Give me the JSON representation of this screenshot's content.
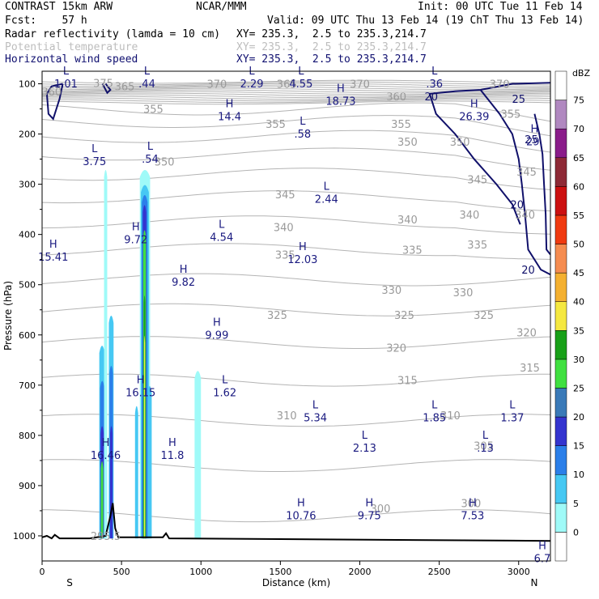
{
  "header": {
    "line1_left": "CONTRAST 15km ARW",
    "line1_mid": "NCAR/MMM",
    "line1_right": "Init: 00 UTC Tue 11 Feb 14",
    "line2_left": "Fcst:    57 h",
    "line2_right": "Valid: 09 UTC Thu 13 Feb 14 (19 ChT Thu 13 Feb 14)",
    "field1_name": "Radar reflectivity (lamda = 10 cm)",
    "field1_xy": "XY= 235.3,  2.5 to 235.3,214.7",
    "field2_name": "Potential temperature",
    "field2_xy": "XY= 235.3,  2.5 to 235.3,214.7",
    "field3_name": "Horizontal wind speed",
    "field3_xy": "XY= 235.3,  2.5 to 235.3,214.7"
  },
  "chart_data": {
    "type": "contour_cross_section",
    "xlabel": "Distance (km)",
    "ylabel": "Pressure (hPa)",
    "xlim": [
      0,
      3200
    ],
    "ylim": [
      1050,
      75
    ],
    "x_ticks": [
      0,
      500,
      1000,
      1500,
      2000,
      2500,
      3000
    ],
    "y_ticks": [
      100,
      200,
      300,
      400,
      500,
      600,
      700,
      800,
      900,
      1000
    ],
    "x_end_labels": {
      "left": "S",
      "right": "N"
    },
    "colorbar": {
      "unit": "dBZ",
      "levels": [
        0,
        5,
        10,
        15,
        20,
        25,
        30,
        35,
        40,
        45,
        50,
        55,
        60,
        65,
        70,
        75
      ],
      "colors": [
        "#ffffff",
        "#9ffaf8",
        "#46c8f3",
        "#2b7fe9",
        "#3434cf",
        "#3a7ab8",
        "#40e040",
        "#18a018",
        "#f5e840",
        "#f4b030",
        "#f58c50",
        "#f03a10",
        "#cc1010",
        "#8e2a36",
        "#8a1c8a",
        "#b088c0"
      ]
    },
    "reflectivity_cells": [
      {
        "x0": 360,
        "x1": 395,
        "top": 620,
        "color": "#46c8f3"
      },
      {
        "x0": 365,
        "x1": 392,
        "top": 690,
        "color": "#2b7fe9"
      },
      {
        "x0": 368,
        "x1": 388,
        "top": 780,
        "color": "#3434cf"
      },
      {
        "x0": 370,
        "x1": 385,
        "top": 850,
        "color": "#40e040"
      },
      {
        "x0": 420,
        "x1": 450,
        "top": 560,
        "color": "#46c8f3"
      },
      {
        "x0": 424,
        "x1": 446,
        "top": 660,
        "color": "#2b7fe9"
      },
      {
        "x0": 428,
        "x1": 444,
        "top": 780,
        "color": "#3434cf"
      },
      {
        "x0": 585,
        "x1": 605,
        "top": 740,
        "color": "#46c8f3"
      },
      {
        "x0": 615,
        "x1": 680,
        "top": 270,
        "color": "#9ffaf8"
      },
      {
        "x0": 622,
        "x1": 672,
        "top": 300,
        "color": "#46c8f3"
      },
      {
        "x0": 628,
        "x1": 664,
        "top": 320,
        "color": "#2b7fe9"
      },
      {
        "x0": 634,
        "x1": 656,
        "top": 340,
        "color": "#3434cf"
      },
      {
        "x0": 636,
        "x1": 654,
        "top": 390,
        "color": "#40e040"
      },
      {
        "x0": 640,
        "x1": 650,
        "top": 520,
        "color": "#18a018"
      },
      {
        "x0": 642,
        "x1": 648,
        "top": 600,
        "color": "#f5e840"
      },
      {
        "x0": 390,
        "x1": 410,
        "top": 270,
        "color": "#9ffaf8"
      },
      {
        "x0": 960,
        "x1": 1000,
        "top": 670,
        "color": "#9ffaf8"
      },
      {
        "x0": 665,
        "x1": 690,
        "top": 700,
        "color": "#46c8f3"
      }
    ],
    "terrain_label": "295.5",
    "theta_labels": [
      {
        "x": 520,
        "p": 105,
        "t": "365"
      },
      {
        "x": 1100,
        "p": 100,
        "t": "370"
      },
      {
        "x": 1540,
        "p": 100,
        "t": "365"
      },
      {
        "x": 2000,
        "p": 100,
        "t": "370"
      },
      {
        "x": 2880,
        "p": 100,
        "t": "370"
      },
      {
        "x": 385,
        "p": 98,
        "t": "375"
      },
      {
        "x": 60,
        "p": 115,
        "t": "360"
      },
      {
        "x": 2230,
        "p": 125,
        "t": "360"
      },
      {
        "x": 700,
        "p": 150,
        "t": "355"
      },
      {
        "x": 1470,
        "p": 180,
        "t": "355"
      },
      {
        "x": 2260,
        "p": 180,
        "t": "355"
      },
      {
        "x": 2950,
        "p": 160,
        "t": "355"
      },
      {
        "x": 2300,
        "p": 215,
        "t": "350"
      },
      {
        "x": 2630,
        "p": 215,
        "t": "350"
      },
      {
        "x": 770,
        "p": 255,
        "t": "350"
      },
      {
        "x": 1530,
        "p": 320,
        "t": "345"
      },
      {
        "x": 2740,
        "p": 290,
        "t": "345"
      },
      {
        "x": 3050,
        "p": 275,
        "t": "345"
      },
      {
        "x": 1520,
        "p": 385,
        "t": "340"
      },
      {
        "x": 2300,
        "p": 370,
        "t": "340"
      },
      {
        "x": 2690,
        "p": 360,
        "t": "340"
      },
      {
        "x": 3040,
        "p": 360,
        "t": "340"
      },
      {
        "x": 1530,
        "p": 440,
        "t": "335"
      },
      {
        "x": 2330,
        "p": 430,
        "t": "335"
      },
      {
        "x": 2740,
        "p": 420,
        "t": "335"
      },
      {
        "x": 2200,
        "p": 510,
        "t": "330"
      },
      {
        "x": 2650,
        "p": 515,
        "t": "330"
      },
      {
        "x": 1480,
        "p": 560,
        "t": "325"
      },
      {
        "x": 2280,
        "p": 560,
        "t": "325"
      },
      {
        "x": 2780,
        "p": 560,
        "t": "325"
      },
      {
        "x": 3050,
        "p": 595,
        "t": "320"
      },
      {
        "x": 2230,
        "p": 625,
        "t": "320"
      },
      {
        "x": 2300,
        "p": 690,
        "t": "315"
      },
      {
        "x": 3070,
        "p": 665,
        "t": "315"
      },
      {
        "x": 1540,
        "p": 760,
        "t": "310"
      },
      {
        "x": 2570,
        "p": 760,
        "t": "310"
      },
      {
        "x": 2780,
        "p": 820,
        "t": "305"
      },
      {
        "x": 2130,
        "p": 945,
        "t": "300"
      },
      {
        "x": 2700,
        "p": 935,
        "t": "300"
      }
    ],
    "wind_labels": [
      {
        "x": 2450,
        "p": 125,
        "t": "20"
      },
      {
        "x": 3000,
        "p": 130,
        "t": "25"
      },
      {
        "x": 3080,
        "p": 210,
        "t": "25"
      },
      {
        "x": 2990,
        "p": 340,
        "t": "20"
      },
      {
        "x": 3060,
        "p": 470,
        "t": "20"
      }
    ],
    "hl_centers": [
      {
        "x": 150,
        "p": 75,
        "k": "L",
        "v": "1.01"
      },
      {
        "x": 660,
        "p": 75,
        "k": "L",
        "v": ".44"
      },
      {
        "x": 1320,
        "p": 75,
        "k": "L",
        "v": "2.29"
      },
      {
        "x": 1630,
        "p": 75,
        "k": "L",
        "v": "4.55"
      },
      {
        "x": 2470,
        "p": 75,
        "k": "L",
        "v": ".36"
      },
      {
        "x": 1880,
        "p": 110,
        "k": "H",
        "v": "18.73"
      },
      {
        "x": 1180,
        "p": 140,
        "k": "H",
        "v": "14.4"
      },
      {
        "x": 1640,
        "p": 175,
        "k": "L",
        "v": ".58"
      },
      {
        "x": 2720,
        "p": 140,
        "k": "H",
        "v": "26.39"
      },
      {
        "x": 3100,
        "p": 190,
        "k": "H",
        "v": "29."
      },
      {
        "x": 330,
        "p": 230,
        "k": "L",
        "v": "3.75"
      },
      {
        "x": 680,
        "p": 225,
        "k": "L",
        "v": ".54"
      },
      {
        "x": 1790,
        "p": 305,
        "k": "L",
        "v": "2.44"
      },
      {
        "x": 1130,
        "p": 380,
        "k": "L",
        "v": "4.54"
      },
      {
        "x": 590,
        "p": 385,
        "k": "H",
        "v": "9.72"
      },
      {
        "x": 70,
        "p": 420,
        "k": "H",
        "v": "15.41"
      },
      {
        "x": 1640,
        "p": 425,
        "k": "H",
        "v": "12.03"
      },
      {
        "x": 890,
        "p": 470,
        "k": "H",
        "v": "9.82"
      },
      {
        "x": 1100,
        "p": 575,
        "k": "H",
        "v": "9.99"
      },
      {
        "x": 620,
        "p": 690,
        "k": "H",
        "v": "16.15"
      },
      {
        "x": 1150,
        "p": 690,
        "k": "L",
        "v": "1.62"
      },
      {
        "x": 1720,
        "p": 740,
        "k": "L",
        "v": "5.34"
      },
      {
        "x": 2470,
        "p": 740,
        "k": "L",
        "v": "1.85"
      },
      {
        "x": 2960,
        "p": 740,
        "k": "L",
        "v": "1.37"
      },
      {
        "x": 400,
        "p": 815,
        "k": "H",
        "v": "16.46"
      },
      {
        "x": 820,
        "p": 815,
        "k": "H",
        "v": "11.8"
      },
      {
        "x": 2030,
        "p": 800,
        "k": "L",
        "v": "2.13"
      },
      {
        "x": 2790,
        "p": 800,
        "k": "L",
        "v": ".13"
      },
      {
        "x": 1630,
        "p": 935,
        "k": "H",
        "v": "10.76"
      },
      {
        "x": 2060,
        "p": 935,
        "k": "H",
        "v": "9.75"
      },
      {
        "x": 2710,
        "p": 935,
        "k": "H",
        "v": "7.53"
      },
      {
        "x": 3150,
        "p": 1020,
        "k": "H",
        "v": "6.7"
      }
    ]
  }
}
